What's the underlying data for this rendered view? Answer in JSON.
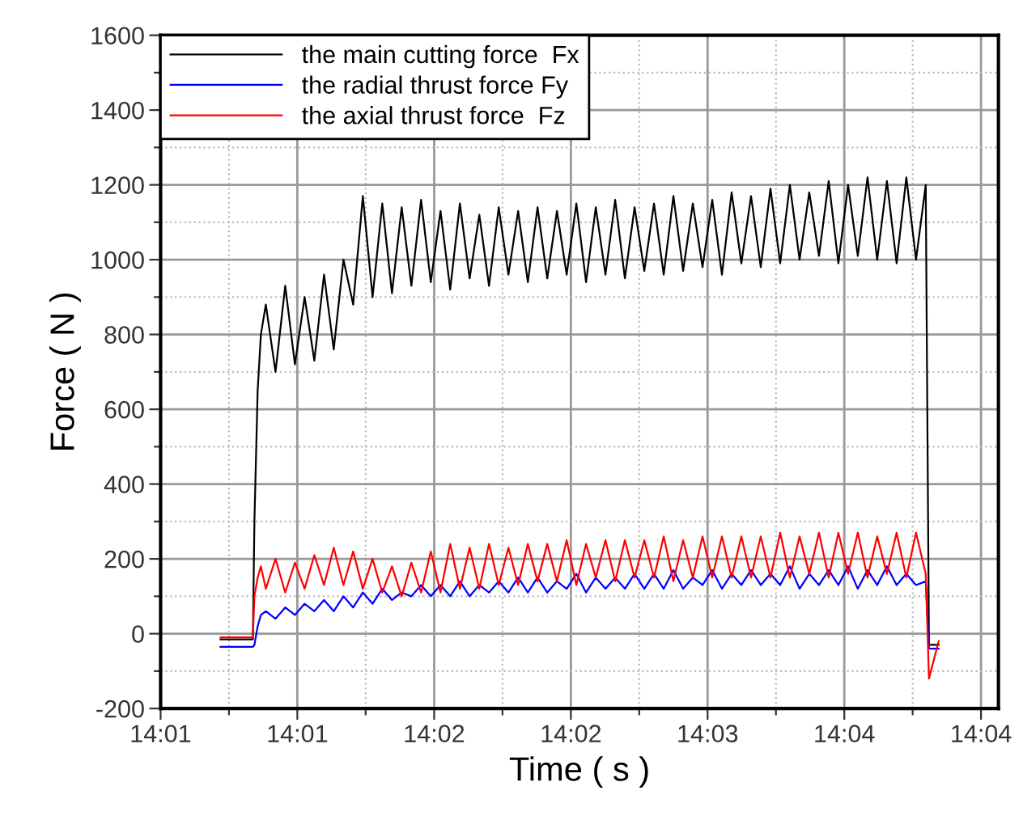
{
  "chart_data": {
    "type": "line",
    "xlabel": "Time ( s )",
    "ylabel": "Force ( N )",
    "x": [
      14.01537,
      14.01767,
      14.01778,
      14.01801,
      14.01824,
      14.01859,
      14.01928,
      14.01997,
      14.02066,
      14.02135,
      14.02204,
      14.02273,
      14.02342,
      14.02411,
      14.0248,
      14.02549,
      14.02618,
      14.02687,
      14.02756,
      14.02825,
      14.02894,
      14.02963,
      14.03032,
      14.03101,
      14.0317,
      14.03239,
      14.03308,
      14.03377,
      14.03446,
      14.03515,
      14.03584,
      14.03653,
      14.03722,
      14.03791,
      14.0386,
      14.03929,
      14.03998,
      14.04067,
      14.04136,
      14.04205,
      14.04274,
      14.04343,
      14.04412,
      14.04481,
      14.0455,
      14.04619,
      14.04688,
      14.04757,
      14.04826,
      14.04895,
      14.04964,
      14.05033,
      14.05102,
      14.05171,
      14.0524,
      14.05309,
      14.05378,
      14.05447,
      14.05516,
      14.05585,
      14.05654,
      14.05723,
      14.05792,
      14.05861,
      14.0593,
      14.05999,
      14.06068,
      14.06137,
      14.06206,
      14.06275,
      14.06344,
      14.06413,
      14.06482,
      14.06551,
      14.06574,
      14.06643
    ],
    "series": [
      {
        "name": "the main cutting force  Fx",
        "color": "#000000",
        "values": [
          -15,
          -15,
          300,
          650,
          800,
          880,
          700,
          930,
          720,
          900,
          730,
          960,
          760,
          1000,
          880,
          1170,
          900,
          1150,
          910,
          1140,
          930,
          1160,
          940,
          1130,
          920,
          1150,
          950,
          1120,
          930,
          1140,
          960,
          1130,
          940,
          1140,
          950,
          1130,
          960,
          1150,
          940,
          1140,
          960,
          1160,
          950,
          1140,
          970,
          1150,
          960,
          1170,
          970,
          1150,
          980,
          1160,
          960,
          1180,
          990,
          1170,
          980,
          1190,
          990,
          1200,
          1000,
          1180,
          1010,
          1210,
          990,
          1200,
          1010,
          1220,
          1000,
          1210,
          990,
          1220,
          1000,
          1200,
          -30,
          -30
        ]
      },
      {
        "name": "the radial thrust force Fy",
        "color": "#0000ff",
        "values": [
          -35,
          -35,
          -30,
          20,
          50,
          60,
          40,
          70,
          50,
          80,
          60,
          90,
          60,
          100,
          70,
          110,
          80,
          120,
          90,
          110,
          100,
          130,
          100,
          130,
          100,
          140,
          100,
          130,
          110,
          140,
          110,
          150,
          110,
          150,
          110,
          140,
          120,
          160,
          110,
          150,
          120,
          150,
          120,
          160,
          120,
          160,
          120,
          170,
          120,
          150,
          130,
          170,
          120,
          160,
          130,
          170,
          130,
          160,
          130,
          180,
          120,
          160,
          130,
          170,
          130,
          180,
          120,
          170,
          130,
          180,
          130,
          160,
          130,
          140,
          -40,
          -40
        ]
      },
      {
        "name": "the axial thrust force  Fz",
        "color": "#ff0000",
        "values": [
          -10,
          -10,
          100,
          150,
          180,
          120,
          200,
          110,
          190,
          120,
          210,
          130,
          230,
          130,
          220,
          120,
          200,
          110,
          180,
          100,
          190,
          110,
          220,
          110,
          240,
          120,
          230,
          120,
          240,
          130,
          230,
          130,
          240,
          140,
          240,
          140,
          250,
          130,
          240,
          150,
          250,
          140,
          250,
          150,
          250,
          150,
          260,
          140,
          250,
          150,
          260,
          150,
          260,
          150,
          260,
          150,
          260,
          150,
          270,
          150,
          260,
          160,
          270,
          150,
          270,
          160,
          270,
          150,
          260,
          160,
          270,
          150,
          270,
          160,
          -120,
          -20
        ]
      }
    ],
    "xlim": [
      14.01111,
      14.07068
    ],
    "xticks": [
      {
        "value": 14.01111,
        "label": "14:01"
      },
      {
        "value": 14.01597,
        "label": null
      },
      {
        "value": 14.02083,
        "label": "14:01"
      },
      {
        "value": 14.02569,
        "label": null
      },
      {
        "value": 14.03056,
        "label": "14:02"
      },
      {
        "value": 14.03542,
        "label": null
      },
      {
        "value": 14.04028,
        "label": "14:02"
      },
      {
        "value": 14.04514,
        "label": null
      },
      {
        "value": 14.05,
        "label": "14:03"
      },
      {
        "value": 14.05486,
        "label": null
      },
      {
        "value": 14.05972,
        "label": "14:04"
      },
      {
        "value": 14.06458,
        "label": null
      },
      {
        "value": 14.06944,
        "label": "14:04"
      }
    ],
    "ylim": [
      -200,
      1600
    ],
    "yticks": [
      -200,
      {
        "value": -100,
        "label": null
      },
      0,
      {
        "value": 100,
        "label": null
      },
      200,
      {
        "value": 300,
        "label": null
      },
      400,
      {
        "value": 500,
        "label": null
      },
      600,
      {
        "value": 700,
        "label": null
      },
      800,
      {
        "value": 900,
        "label": null
      },
      1000,
      {
        "value": 1100,
        "label": null
      },
      1200,
      {
        "value": 1300,
        "label": null
      },
      1400,
      {
        "value": 1500,
        "label": null
      },
      1600
    ],
    "grid": true,
    "legend": "top left",
    "marker": "none",
    "line_style": "solid"
  }
}
